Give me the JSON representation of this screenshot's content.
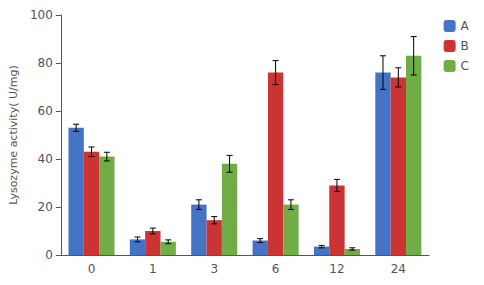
{
  "chart_data": {
    "type": "bar",
    "categories": [
      "0",
      "1",
      "3",
      "6",
      "12",
      "24"
    ],
    "series": [
      {
        "name": "A",
        "color": "#4472C4",
        "values": [
          53,
          6.5,
          21,
          6,
          3.5,
          76
        ],
        "errors": [
          1.5,
          1.0,
          2.0,
          0.8,
          0.5,
          7
        ]
      },
      {
        "name": "B",
        "color": "#CC3333",
        "values": [
          43,
          10,
          14.5,
          76,
          29,
          74
        ],
        "errors": [
          2.0,
          1.2,
          1.5,
          5,
          2.5,
          4
        ]
      },
      {
        "name": "C",
        "color": "#70AD47",
        "values": [
          41,
          5.5,
          38,
          21,
          2.5,
          83
        ],
        "errors": [
          1.8,
          0.8,
          3.5,
          2.0,
          0.5,
          8
        ]
      }
    ],
    "ylabel": "Lysozyme activity( U/mg)",
    "ylim": [
      0,
      100
    ],
    "yticks": [
      0,
      20,
      40,
      60,
      80,
      100
    ],
    "grid": false,
    "legend": "right"
  }
}
